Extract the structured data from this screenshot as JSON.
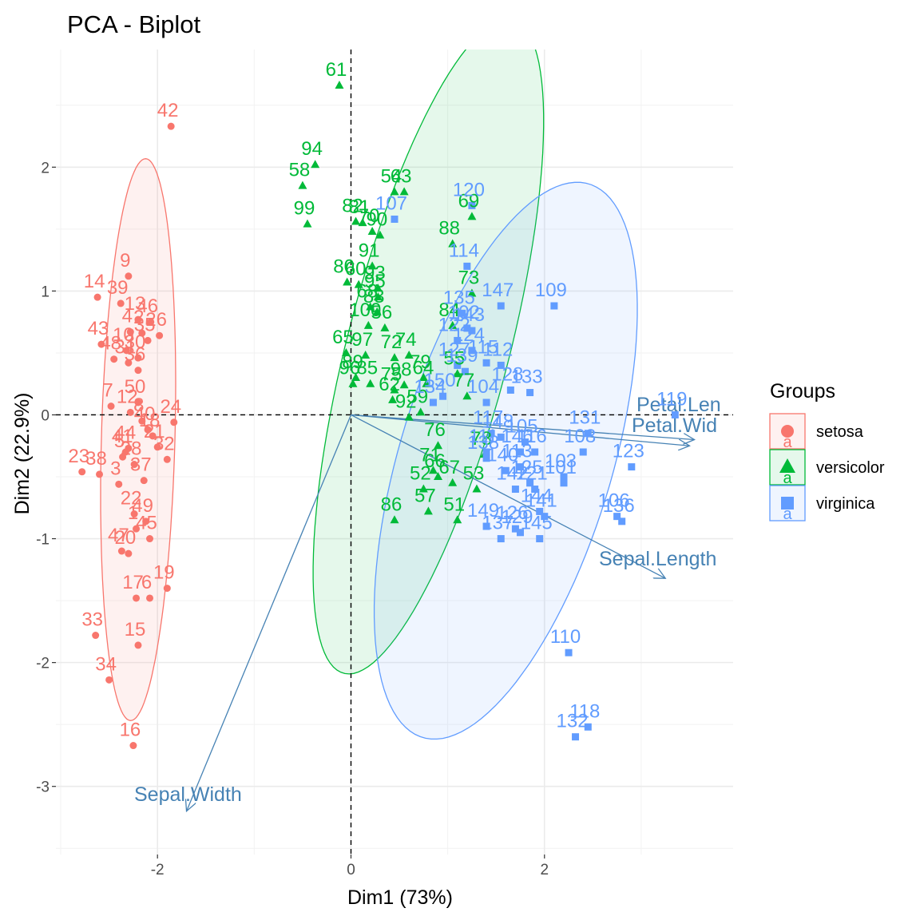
{
  "chart_data": {
    "type": "scatter",
    "subtype": "pca-biplot",
    "title": "PCA - Biplot",
    "xlabel": "Dim1 (73%)",
    "ylabel": "Dim2 (22.9%)",
    "xlim": [
      -3.05,
      3.95
    ],
    "ylim": [
      -3.55,
      2.95
    ],
    "x_ticks": [
      -2,
      0,
      2
    ],
    "y_ticks": [
      -3,
      -2,
      -1,
      0,
      1,
      2
    ],
    "grid": true,
    "reference_lines": {
      "x": 0,
      "y": 0,
      "style": "dashed"
    },
    "legend": {
      "title": "Groups",
      "position": "right"
    },
    "series": [
      {
        "name": "setosa",
        "color": "#F8766D",
        "shape": "circle",
        "ellipse": {
          "cx": -2.2,
          "cy": -0.2,
          "rx": 0.38,
          "ry": 2.27,
          "angle_deg": -2
        },
        "points": [
          {
            "label": "42",
            "x": -1.86,
            "y": 2.33
          },
          {
            "label": "14",
            "x": -2.62,
            "y": 0.95
          },
          {
            "label": "9",
            "x": -2.3,
            "y": 1.12
          },
          {
            "label": "39",
            "x": -2.38,
            "y": 0.9
          },
          {
            "label": "13",
            "x": -2.2,
            "y": 0.77
          },
          {
            "label": "46",
            "x": -2.07,
            "y": 0.75
          },
          {
            "label": "26",
            "x": -1.98,
            "y": 0.64
          },
          {
            "label": "4",
            "x": -2.28,
            "y": 0.67
          },
          {
            "label": "2",
            "x": -2.16,
            "y": 0.66
          },
          {
            "label": "35",
            "x": -2.1,
            "y": 0.6
          },
          {
            "label": "43",
            "x": -2.58,
            "y": 0.57
          },
          {
            "label": "10",
            "x": -2.32,
            "y": 0.52
          },
          {
            "label": "48",
            "x": -2.45,
            "y": 0.45
          },
          {
            "label": "30",
            "x": -2.2,
            "y": 0.46
          },
          {
            "label": "31",
            "x": -2.3,
            "y": 0.42
          },
          {
            "label": "36",
            "x": -2.2,
            "y": 0.36
          },
          {
            "label": "7",
            "x": -2.48,
            "y": 0.07
          },
          {
            "label": "50",
            "x": -2.2,
            "y": 0.1
          },
          {
            "label": "12",
            "x": -2.28,
            "y": 0.02
          },
          {
            "label": "24",
            "x": -1.83,
            "y": -0.06
          },
          {
            "label": "8",
            "x": -2.16,
            "y": -0.05
          },
          {
            "label": "40",
            "x": -2.1,
            "y": -0.12
          },
          {
            "label": "18",
            "x": -2.05,
            "y": -0.17
          },
          {
            "label": "23",
            "x": -2.78,
            "y": -0.46
          },
          {
            "label": "44",
            "x": -2.3,
            "y": -0.27
          },
          {
            "label": "41",
            "x": -2.33,
            "y": -0.3
          },
          {
            "label": "21",
            "x": -2.0,
            "y": -0.26
          },
          {
            "label": "32",
            "x": -1.9,
            "y": -0.36
          },
          {
            "label": "5",
            "x": -2.36,
            "y": -0.34
          },
          {
            "label": "28",
            "x": -2.24,
            "y": -0.4
          },
          {
            "label": "38",
            "x": -2.6,
            "y": -0.48
          },
          {
            "label": "3",
            "x": -2.4,
            "y": -0.56
          },
          {
            "label": "37",
            "x": -2.14,
            "y": -0.53
          },
          {
            "label": "22",
            "x": -2.24,
            "y": -0.8
          },
          {
            "label": "49",
            "x": -2.12,
            "y": -0.86
          },
          {
            "label": "1",
            "x": -2.22,
            "y": -0.92
          },
          {
            "label": "47",
            "x": -2.37,
            "y": -1.1
          },
          {
            "label": "20",
            "x": -2.3,
            "y": -1.12
          },
          {
            "label": "45",
            "x": -2.08,
            "y": -1.0
          },
          {
            "label": "19",
            "x": -1.9,
            "y": -1.4
          },
          {
            "label": "17",
            "x": -2.22,
            "y": -1.48
          },
          {
            "label": "6",
            "x": -2.08,
            "y": -1.48
          },
          {
            "label": "33",
            "x": -2.64,
            "y": -1.78
          },
          {
            "label": "15",
            "x": -2.2,
            "y": -1.86
          },
          {
            "label": "34",
            "x": -2.5,
            "y": -2.14
          },
          {
            "label": "16",
            "x": -2.25,
            "y": -2.67
          }
        ]
      },
      {
        "name": "versicolor",
        "color": "#00BA38",
        "shape": "triangle",
        "ellipse": {
          "cx": 0.8,
          "cy": 0.55,
          "rx": 0.82,
          "ry": 2.78,
          "angle_deg": -19
        },
        "points": [
          {
            "label": "61",
            "x": -0.12,
            "y": 2.66
          },
          {
            "label": "94",
            "x": -0.37,
            "y": 2.02
          },
          {
            "label": "58",
            "x": -0.5,
            "y": 1.85
          },
          {
            "label": "99",
            "x": -0.45,
            "y": 1.54
          },
          {
            "label": "54",
            "x": 0.45,
            "y": 1.8
          },
          {
            "label": "63",
            "x": 0.55,
            "y": 1.8
          },
          {
            "label": "69",
            "x": 1.25,
            "y": 1.6
          },
          {
            "label": "82",
            "x": 0.05,
            "y": 1.56
          },
          {
            "label": "81",
            "x": 0.12,
            "y": 1.55
          },
          {
            "label": "70",
            "x": 0.22,
            "y": 1.48
          },
          {
            "label": "90",
            "x": 0.3,
            "y": 1.45
          },
          {
            "label": "88",
            "x": 1.05,
            "y": 1.38
          },
          {
            "label": "91",
            "x": 0.22,
            "y": 1.2
          },
          {
            "label": "80",
            "x": -0.04,
            "y": 1.07
          },
          {
            "label": "60",
            "x": 0.08,
            "y": 1.05
          },
          {
            "label": "93",
            "x": 0.28,
            "y": 1.02
          },
          {
            "label": "95",
            "x": 0.28,
            "y": 0.95
          },
          {
            "label": "68",
            "x": 0.2,
            "y": 0.87
          },
          {
            "label": "83",
            "x": 0.27,
            "y": 0.83
          },
          {
            "label": "73",
            "x": 1.25,
            "y": 0.98
          },
          {
            "label": "84",
            "x": 1.05,
            "y": 0.72
          },
          {
            "label": "100",
            "x": 0.18,
            "y": 0.72
          },
          {
            "label": "56",
            "x": 0.35,
            "y": 0.7
          },
          {
            "label": "65",
            "x": -0.05,
            "y": 0.5
          },
          {
            "label": "97",
            "x": 0.15,
            "y": 0.48
          },
          {
            "label": "74",
            "x": 0.6,
            "y": 0.48
          },
          {
            "label": "72",
            "x": 0.45,
            "y": 0.46
          },
          {
            "label": "89",
            "x": 0.05,
            "y": 0.3
          },
          {
            "label": "96",
            "x": 0.02,
            "y": 0.25
          },
          {
            "label": "85",
            "x": 0.2,
            "y": 0.25
          },
          {
            "label": "79",
            "x": 0.75,
            "y": 0.3
          },
          {
            "label": "64",
            "x": 0.78,
            "y": 0.25
          },
          {
            "label": "75",
            "x": 0.45,
            "y": 0.2
          },
          {
            "label": "98",
            "x": 0.55,
            "y": 0.24
          },
          {
            "label": "62",
            "x": 0.43,
            "y": 0.12
          },
          {
            "label": "55",
            "x": 1.1,
            "y": 0.33
          },
          {
            "label": "92",
            "x": 0.6,
            "y": -0.02
          },
          {
            "label": "59",
            "x": 0.72,
            "y": 0.02
          },
          {
            "label": "77",
            "x": 1.2,
            "y": 0.15
          },
          {
            "label": "78",
            "x": 1.38,
            "y": -0.32
          },
          {
            "label": "76",
            "x": 0.9,
            "y": -0.25
          },
          {
            "label": "71",
            "x": 0.85,
            "y": -0.45
          },
          {
            "label": "66",
            "x": 0.9,
            "y": -0.5
          },
          {
            "label": "67",
            "x": 1.05,
            "y": -0.55
          },
          {
            "label": "52",
            "x": 0.75,
            "y": -0.6
          },
          {
            "label": "53",
            "x": 1.3,
            "y": -0.6
          },
          {
            "label": "57",
            "x": 0.8,
            "y": -0.78
          },
          {
            "label": "86",
            "x": 0.45,
            "y": -0.85
          },
          {
            "label": "51",
            "x": 1.1,
            "y": -0.85
          }
        ]
      },
      {
        "name": "virginica",
        "color": "#619CFF",
        "shape": "square",
        "ellipse": {
          "cx": 1.6,
          "cy": -0.37,
          "rx": 1.07,
          "ry": 2.4,
          "angle_deg": -23
        },
        "points": [
          {
            "label": "120",
            "x": 1.25,
            "y": 1.69
          },
          {
            "label": "107",
            "x": 0.45,
            "y": 1.58
          },
          {
            "label": "114",
            "x": 1.2,
            "y": 1.2
          },
          {
            "label": "147",
            "x": 1.55,
            "y": 0.88
          },
          {
            "label": "109",
            "x": 2.1,
            "y": 0.88
          },
          {
            "label": "135",
            "x": 1.15,
            "y": 0.82
          },
          {
            "label": "102",
            "x": 1.2,
            "y": 0.7
          },
          {
            "label": "143",
            "x": 1.25,
            "y": 0.68
          },
          {
            "label": "122",
            "x": 1.1,
            "y": 0.6
          },
          {
            "label": "124",
            "x": 1.25,
            "y": 0.52
          },
          {
            "label": "115",
            "x": 1.4,
            "y": 0.42
          },
          {
            "label": "112",
            "x": 1.55,
            "y": 0.4
          },
          {
            "label": "127",
            "x": 1.1,
            "y": 0.4
          },
          {
            "label": "139",
            "x": 1.18,
            "y": 0.35
          },
          {
            "label": "128",
            "x": 1.65,
            "y": 0.2
          },
          {
            "label": "133",
            "x": 1.85,
            "y": 0.18
          },
          {
            "label": "150",
            "x": 0.95,
            "y": 0.15
          },
          {
            "label": "104",
            "x": 1.4,
            "y": 0.1
          },
          {
            "label": "134",
            "x": 0.85,
            "y": 0.1
          },
          {
            "label": "119",
            "x": 3.35,
            "y": 0.0
          },
          {
            "label": "131",
            "x": 2.45,
            "y": -0.15
          },
          {
            "label": "123",
            "x": 2.9,
            "y": -0.42
          },
          {
            "label": "117",
            "x": 1.45,
            "y": -0.15
          },
          {
            "label": "148",
            "x": 1.55,
            "y": -0.18
          },
          {
            "label": "105",
            "x": 1.8,
            "y": -0.22
          },
          {
            "label": "111",
            "x": 1.4,
            "y": -0.3
          },
          {
            "label": "138",
            "x": 1.4,
            "y": -0.35
          },
          {
            "label": "146",
            "x": 1.75,
            "y": -0.3
          },
          {
            "label": "116",
            "x": 1.9,
            "y": -0.3
          },
          {
            "label": "140",
            "x": 1.6,
            "y": -0.45
          },
          {
            "label": "108",
            "x": 2.4,
            "y": -0.3
          },
          {
            "label": "113",
            "x": 1.75,
            "y": -0.42
          },
          {
            "label": "103",
            "x": 2.2,
            "y": -0.5
          },
          {
            "label": "125",
            "x": 1.85,
            "y": -0.55
          },
          {
            "label": "121",
            "x": 1.9,
            "y": -0.6
          },
          {
            "label": "142",
            "x": 1.7,
            "y": -0.6
          },
          {
            "label": "101",
            "x": 2.2,
            "y": -0.55
          },
          {
            "label": "106",
            "x": 2.75,
            "y": -0.82
          },
          {
            "label": "136",
            "x": 2.8,
            "y": -0.86
          },
          {
            "label": "144",
            "x": 1.95,
            "y": -0.78
          },
          {
            "label": "141",
            "x": 2.0,
            "y": -0.82
          },
          {
            "label": "149",
            "x": 1.4,
            "y": -0.9
          },
          {
            "label": "126",
            "x": 1.7,
            "y": -0.92
          },
          {
            "label": "129",
            "x": 1.75,
            "y": -0.95
          },
          {
            "label": "137",
            "x": 1.55,
            "y": -1.0
          },
          {
            "label": "145",
            "x": 1.95,
            "y": -1.0
          },
          {
            "label": "110",
            "x": 2.25,
            "y": -1.92
          },
          {
            "label": "118",
            "x": 2.45,
            "y": -2.52
          },
          {
            "label": "132",
            "x": 2.32,
            "y": -2.6
          }
        ]
      }
    ],
    "variables": [
      {
        "name": "Petal.Length",
        "display": "Petal.Len",
        "x": 3.55,
        "y": -0.2
      },
      {
        "name": "Petal.Width",
        "display": "Petal.Wid",
        "x": 3.5,
        "y": -0.25
      },
      {
        "name": "Sepal.Length",
        "display": "Sepal.Length",
        "x": 3.25,
        "y": -1.32
      },
      {
        "name": "Sepal.Width",
        "display": "Sepal.Width",
        "x": -1.7,
        "y": -3.2
      }
    ],
    "variable_color": "#4682B4"
  }
}
